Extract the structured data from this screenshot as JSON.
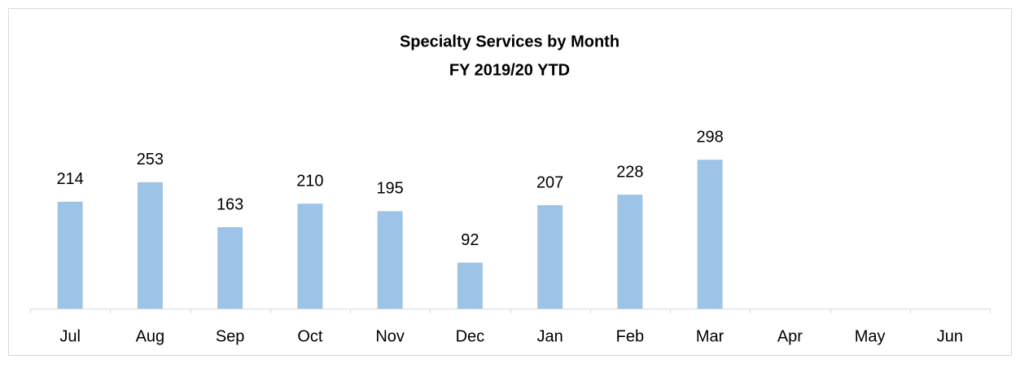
{
  "chart_data": {
    "type": "bar",
    "title": "Specialty Services by Month",
    "subtitle": "FY 2019/20 YTD",
    "categories": [
      "Jul",
      "Aug",
      "Sep",
      "Oct",
      "Nov",
      "Dec",
      "Jan",
      "Feb",
      "Mar",
      "Apr",
      "May",
      "Jun"
    ],
    "values": [
      214,
      253,
      163,
      210,
      195,
      92,
      207,
      228,
      298,
      null,
      null,
      null
    ],
    "color": "#9dc3e6",
    "ylim": [
      0,
      300
    ]
  }
}
